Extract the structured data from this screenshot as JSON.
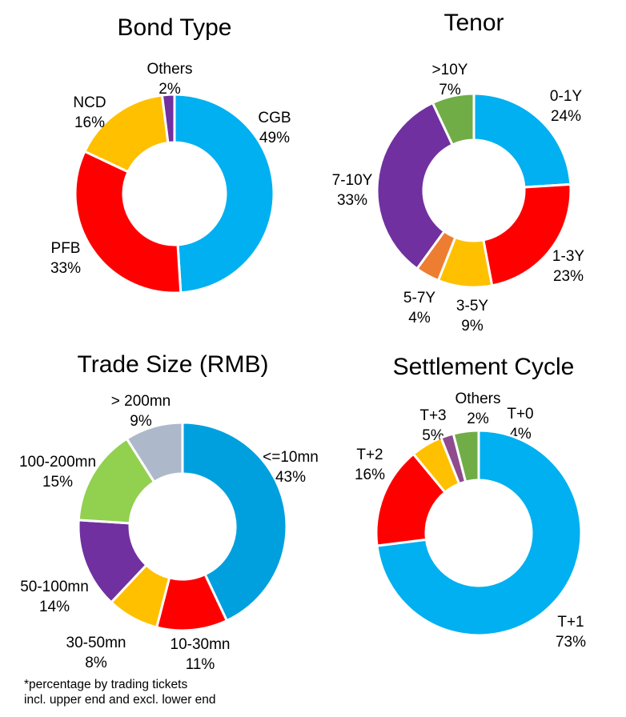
{
  "chart_data": [
    {
      "type": "pie",
      "subtype": "donut",
      "title": "Bond Type",
      "slices": [
        {
          "label": "CGB",
          "value": 49,
          "value_text": "49%",
          "color": "#00B0F0"
        },
        {
          "label": "PFB",
          "value": 33,
          "value_text": "33%",
          "color": "#FF0000"
        },
        {
          "label": "NCD",
          "value": 16,
          "value_text": "16%",
          "color": "#FFC000"
        },
        {
          "label": "Others",
          "value": 2,
          "value_text": "2%",
          "color": "#7030A0"
        }
      ]
    },
    {
      "type": "pie",
      "subtype": "donut",
      "title": "Tenor",
      "slices": [
        {
          "label": "0-1Y",
          "value": 24,
          "value_text": "24%",
          "color": "#00B0F0"
        },
        {
          "label": "1-3Y",
          "value": 23,
          "value_text": "23%",
          "color": "#FF0000"
        },
        {
          "label": "3-5Y",
          "value": 9,
          "value_text": "9%",
          "color": "#FFC000"
        },
        {
          "label": "5-7Y",
          "value": 4,
          "value_text": "4%",
          "color": "#ED7D31"
        },
        {
          "label": "7-10Y",
          "value": 33,
          "value_text": "33%",
          "color": "#7030A0"
        },
        {
          "label": ">10Y",
          "value": 7,
          "value_text": "7%",
          "color": "#70AD47"
        }
      ]
    },
    {
      "type": "pie",
      "subtype": "donut",
      "title": "Trade Size (RMB)",
      "slices": [
        {
          "label": "<=10mn",
          "value": 43,
          "value_text": "43%",
          "color": "#00A0DF"
        },
        {
          "label": "10-30mn",
          "value": 11,
          "value_text": "11%",
          "color": "#FF0000"
        },
        {
          "label": "30-50mn",
          "value": 8,
          "value_text": "8%",
          "color": "#FFC000"
        },
        {
          "label": "50-100mn",
          "value": 14,
          "value_text": "14%",
          "color": "#7030A0"
        },
        {
          "label": "100-200mn",
          "value": 15,
          "value_text": "15%",
          "color": "#92D050"
        },
        {
          "label": "> 200mn",
          "value": 9,
          "value_text": "9%",
          "color": "#ADB9CA"
        }
      ]
    },
    {
      "type": "pie",
      "subtype": "donut",
      "title": "Settlement Cycle",
      "slices": [
        {
          "label": "T+0",
          "value": 4,
          "value_text": "4%",
          "color": "#70AD47"
        },
        {
          "label": "T+1",
          "value": 73,
          "value_text": "73%",
          "color": "#00B0F0"
        },
        {
          "label": "T+2",
          "value": 16,
          "value_text": "16%",
          "color": "#FF0000"
        },
        {
          "label": "T+3",
          "value": 5,
          "value_text": "5%",
          "color": "#FFC000"
        },
        {
          "label": "Others",
          "value": 2,
          "value_text": "2%",
          "color": "#8E4B8F"
        }
      ]
    }
  ],
  "footnote": {
    "line1": "*percentage by trading tickets",
    "line2": "incl. upper end and excl. lower end"
  }
}
